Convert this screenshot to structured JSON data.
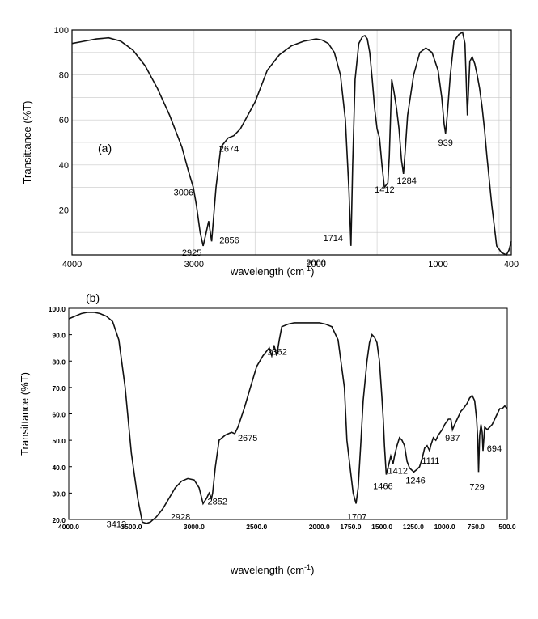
{
  "chart_data": [
    {
      "type": "line",
      "panel_label": "(a)",
      "xlabel": "wavelength (cm",
      "xlabel_sup": "-1",
      "xlabel_end": ")",
      "ylabel": "Transittance (%T)",
      "xlim": [
        4000,
        400
      ],
      "ylim": [
        0,
        100
      ],
      "x_ticks": [
        4000,
        3000,
        2000,
        1000,
        400
      ],
      "x_tick_labels": [
        "4000",
        "3000",
        "2000",
        "1000",
        "400"
      ],
      "y_ticks": [
        20,
        40,
        60,
        80,
        100
      ],
      "y_tick_labels": [
        "20",
        "40",
        "60",
        "80",
        "100"
      ],
      "grid": true,
      "series": [
        {
          "x": [
            4000,
            3900,
            3800,
            3700,
            3600,
            3500,
            3400,
            3300,
            3200,
            3100,
            3050,
            3006,
            2980,
            2950,
            2925,
            2900,
            2880,
            2856,
            2820,
            2780,
            2720,
            2674,
            2620,
            2500,
            2400,
            2300,
            2200,
            2100,
            2000,
            1950,
            1900,
            1850,
            1800,
            1760,
            1730,
            1714,
            1700,
            1680,
            1650,
            1620,
            1600,
            1580,
            1560,
            1540,
            1520,
            1500,
            1480,
            1460,
            1440,
            1412,
            1400,
            1380,
            1360,
            1340,
            1320,
            1300,
            1284,
            1270,
            1250,
            1200,
            1150,
            1100,
            1050,
            1000,
            970,
            950,
            939,
            925,
            900,
            870,
            830,
            800,
            780,
            760,
            740,
            720,
            700,
            680,
            660,
            640,
            620,
            600,
            560,
            520,
            480,
            440,
            420,
            400
          ],
          "y": [
            94,
            95,
            96,
            96.5,
            95,
            91,
            84,
            74,
            62,
            48,
            38,
            30,
            22,
            10,
            4,
            10,
            15,
            6,
            30,
            48,
            52,
            53,
            56,
            68,
            82,
            89,
            93,
            95,
            96,
            95.5,
            94,
            90,
            80,
            60,
            28,
            4,
            40,
            78,
            94,
            97,
            97.5,
            96,
            90,
            78,
            65,
            56,
            52,
            40,
            30,
            32,
            44,
            78,
            72,
            65,
            56,
            42,
            36,
            46,
            62,
            80,
            90,
            92,
            90,
            82,
            70,
            58,
            54,
            62,
            80,
            95,
            98,
            99,
            94,
            62,
            86,
            88,
            85,
            80,
            74,
            66,
            56,
            44,
            22,
            4,
            1,
            0,
            2,
            6
          ]
        }
      ],
      "annotations": [
        {
          "text": "3006",
          "x": 3006,
          "y": 30
        },
        {
          "text": "2925",
          "x": 2925,
          "y": 4
        },
        {
          "text": "2856",
          "x": 2856,
          "y": 6
        },
        {
          "text": "2674",
          "x": 2674,
          "y": 53
        },
        {
          "text": "1714",
          "x": 1714,
          "y": 4
        },
        {
          "text": "1412",
          "x": 1412,
          "y": 32
        },
        {
          "text": "1284",
          "x": 1284,
          "y": 36
        },
        {
          "text": "939",
          "x": 939,
          "y": 54
        },
        {
          "text": "2000",
          "x": 2000,
          "y": 0
        }
      ]
    },
    {
      "type": "line",
      "panel_label": "(b)",
      "xlabel": "wavelength (cm",
      "xlabel_sup": "-1",
      "xlabel_end": ")",
      "ylabel": "Transittance (%T)",
      "xlim": [
        4000,
        500
      ],
      "ylim": [
        20,
        100
      ],
      "x_ticks": [
        4000,
        3500,
        3000,
        2500,
        2000,
        1750,
        1500,
        1250,
        1000,
        750,
        500
      ],
      "x_tick_labels": [
        "4000.0",
        "3500.0",
        "3000.0",
        "2500.0",
        "2000.0",
        "1750.0",
        "1500.0",
        "1250.0",
        "1000.0",
        "750.0",
        "500.0"
      ],
      "y_ticks": [
        20,
        30,
        40,
        50,
        60,
        70,
        80,
        90,
        100
      ],
      "y_tick_labels": [
        "20.0",
        "30.0",
        "40.0",
        "50.0",
        "60.0",
        "70.0",
        "80.0",
        "90.0",
        "100.0"
      ],
      "grid": false,
      "series": [
        {
          "x": [
            4000,
            3950,
            3900,
            3850,
            3800,
            3750,
            3700,
            3650,
            3600,
            3550,
            3500,
            3450,
            3413,
            3380,
            3350,
            3300,
            3250,
            3200,
            3150,
            3100,
            3050,
            3000,
            2960,
            2928,
            2900,
            2880,
            2860,
            2852,
            2830,
            2800,
            2750,
            2700,
            2675,
            2650,
            2600,
            2550,
            2500,
            2450,
            2400,
            2380,
            2362,
            2340,
            2320,
            2300,
            2250,
            2200,
            2100,
            2000,
            1950,
            1900,
            1850,
            1800,
            1780,
            1750,
            1730,
            1707,
            1690,
            1670,
            1650,
            1620,
            1600,
            1580,
            1560,
            1540,
            1520,
            1500,
            1490,
            1480,
            1466,
            1450,
            1430,
            1412,
            1400,
            1380,
            1360,
            1340,
            1320,
            1300,
            1280,
            1246,
            1220,
            1200,
            1180,
            1160,
            1140,
            1120,
            1111,
            1090,
            1070,
            1050,
            1020,
            1000,
            970,
            950,
            937,
            920,
            900,
            870,
            850,
            820,
            800,
            780,
            760,
            745,
            735,
            729,
            720,
            710,
            700,
            694,
            680,
            660,
            640,
            620,
            600,
            580,
            560,
            540,
            520,
            500
          ],
          "y": [
            96,
            97,
            98,
            98.5,
            98.5,
            98,
            97,
            95,
            88,
            70,
            45,
            28,
            19,
            18.5,
            19,
            21,
            24,
            28,
            32,
            34.5,
            35.5,
            35,
            32,
            26,
            28,
            30,
            28,
            30,
            40,
            50,
            52,
            53,
            52.5,
            55,
            62,
            70,
            78,
            82,
            85,
            82,
            86,
            82,
            88,
            93,
            94,
            94.5,
            94.5,
            94.5,
            94,
            93,
            88,
            70,
            50,
            38,
            30,
            26,
            32,
            48,
            65,
            80,
            87,
            90,
            89,
            87,
            80,
            66,
            58,
            48,
            37,
            40,
            44,
            41,
            44,
            48,
            51,
            50,
            48,
            42,
            39.5,
            38,
            39,
            40,
            43,
            47,
            48,
            46,
            48,
            51,
            50,
            52,
            54,
            56,
            58,
            58,
            54,
            56,
            58,
            61,
            62,
            64,
            66,
            67,
            65,
            58,
            50,
            38,
            52,
            56,
            53,
            46,
            55,
            54,
            55,
            56,
            58,
            60,
            62,
            62,
            63,
            62
          ]
        }
      ],
      "annotations": [
        {
          "text": "3413",
          "x": 3413,
          "y": 19
        },
        {
          "text": "2928",
          "x": 2928,
          "y": 26
        },
        {
          "text": "2852",
          "x": 2852,
          "y": 30
        },
        {
          "text": "2675",
          "x": 2675,
          "y": 52.5
        },
        {
          "text": "2362",
          "x": 2362,
          "y": 86
        },
        {
          "text": "1707",
          "x": 1707,
          "y": 26
        },
        {
          "text": "1466",
          "x": 1466,
          "y": 37
        },
        {
          "text": "1412",
          "x": 1412,
          "y": 41
        },
        {
          "text": "1246",
          "x": 1246,
          "y": 38
        },
        {
          "text": "1111",
          "x": 1111,
          "y": 46
        },
        {
          "text": "937",
          "x": 937,
          "y": 54
        },
        {
          "text": "729",
          "x": 729,
          "y": 38
        },
        {
          "text": "694",
          "x": 694,
          "y": 46
        }
      ]
    }
  ]
}
